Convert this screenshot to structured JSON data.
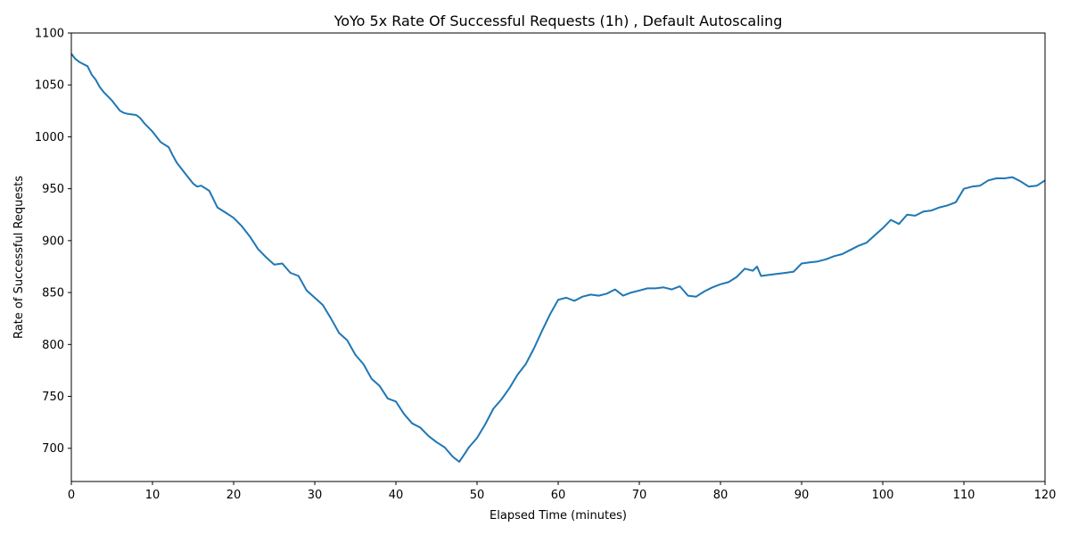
{
  "chart_data": {
    "type": "line",
    "title": "YoYo 5x Rate Of Successful Requests (1h) , Default Autoscaling",
    "xlabel": "Elapsed Time (minutes)",
    "ylabel": "Rate of Successful Requests",
    "xlim": [
      0,
      120
    ],
    "ylim": [
      668,
      1100
    ],
    "xticks": [
      0,
      10,
      20,
      30,
      40,
      50,
      60,
      70,
      80,
      90,
      100,
      110,
      120
    ],
    "yticks": [
      700,
      750,
      800,
      850,
      900,
      950,
      1000,
      1050,
      1100
    ],
    "grid": false,
    "line_color": "#1f77b4",
    "series": [
      {
        "x": [
          0,
          0.5,
          1,
          2,
          2.5,
          3,
          3.5,
          4,
          5,
          6,
          6.5,
          7,
          8,
          8.5,
          9,
          10,
          11,
          12,
          12.5,
          13,
          14,
          15,
          15.5,
          16,
          17,
          17.5,
          18,
          19,
          20,
          21,
          22,
          23,
          24,
          25,
          26,
          27,
          28,
          29,
          30,
          31,
          32,
          33,
          34,
          35,
          36,
          37,
          38,
          39,
          40,
          41,
          42,
          43,
          44,
          45,
          46,
          47,
          47.8,
          48.5,
          49,
          50,
          51,
          52,
          53,
          54,
          55,
          56,
          57,
          58,
          59,
          60,
          61,
          62,
          63,
          64,
          65,
          66,
          67,
          68,
          69,
          70,
          71,
          72,
          73,
          74,
          75,
          76,
          77,
          78,
          79,
          80,
          81,
          82,
          83,
          84,
          84.5,
          85,
          86,
          87,
          88,
          89,
          90,
          91,
          92,
          93,
          94,
          95,
          96,
          97,
          98,
          99,
          100,
          101,
          102,
          103,
          104,
          105,
          106,
          107,
          108,
          109,
          110,
          111,
          112,
          113,
          114,
          115,
          116,
          117,
          118,
          119,
          120
        ],
        "y": [
          1080,
          1075,
          1072,
          1068,
          1060,
          1055,
          1048,
          1043,
          1035,
          1025,
          1023,
          1022,
          1021,
          1018,
          1013,
          1005,
          995,
          990,
          982,
          975,
          965,
          955,
          952,
          953,
          948,
          940,
          932,
          927,
          922,
          914,
          904,
          892,
          884,
          877,
          878,
          869,
          866,
          852,
          845,
          838,
          825,
          811,
          804,
          790,
          781,
          767,
          760,
          748,
          745,
          733,
          724,
          720,
          712,
          706,
          701,
          692,
          687,
          695,
          701,
          710,
          723,
          738,
          747,
          758,
          771,
          781,
          796,
          813,
          829,
          843,
          845,
          842,
          846,
          848,
          847,
          849,
          853,
          847,
          850,
          852,
          854,
          854,
          855,
          853,
          856,
          847,
          846,
          851,
          855,
          858,
          860,
          865,
          873,
          871,
          875,
          866,
          867,
          868,
          869,
          870,
          878,
          879,
          880,
          882,
          885,
          887,
          891,
          895,
          898,
          905,
          912,
          920,
          916,
          925,
          924,
          928,
          929,
          932,
          934,
          937,
          950,
          952,
          953,
          958,
          960,
          960,
          961,
          957,
          952,
          953,
          958
        ]
      }
    ]
  }
}
